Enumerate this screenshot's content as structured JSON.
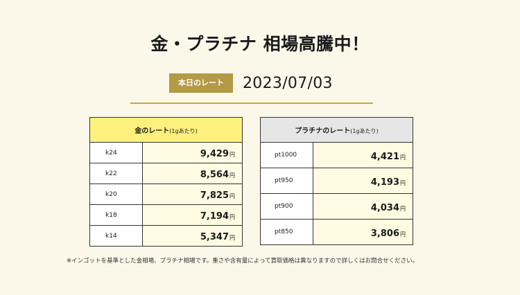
{
  "headline": "金・プラチナ 相場高騰中！",
  "date": {
    "badge_label": "本日のレート",
    "value": "2023/07/03"
  },
  "gold": {
    "title": "金のレート",
    "title_sub": "(1gあたり)",
    "unit": "円",
    "rows": [
      {
        "label": "k24",
        "value": "9,429"
      },
      {
        "label": "k22",
        "value": "8,564"
      },
      {
        "label": "k20",
        "value": "7,825"
      },
      {
        "label": "k18",
        "value": "7,194"
      },
      {
        "label": "k14",
        "value": "5,347"
      }
    ]
  },
  "platinum": {
    "title": "プラチナのレート",
    "title_sub": "(1gあたり)",
    "unit": "円",
    "rows": [
      {
        "label": "pt1000",
        "value": "4,421"
      },
      {
        "label": "pt950",
        "value": "4,193"
      },
      {
        "label": "pt900",
        "value": "4,034"
      },
      {
        "label": "pt850",
        "value": "3,806"
      }
    ]
  },
  "note": "※インゴットを基準とした金相場、プラチナ相場です。重さや含有量によって買取価格は異なりますので詳しくはお問合せください。",
  "colors": {
    "background": "#fbf8ea",
    "badge": "#b39a45",
    "gold_header": "#fdf07c",
    "platinum_header": "#e6e6e6",
    "value_cell": "#fefbe2"
  }
}
